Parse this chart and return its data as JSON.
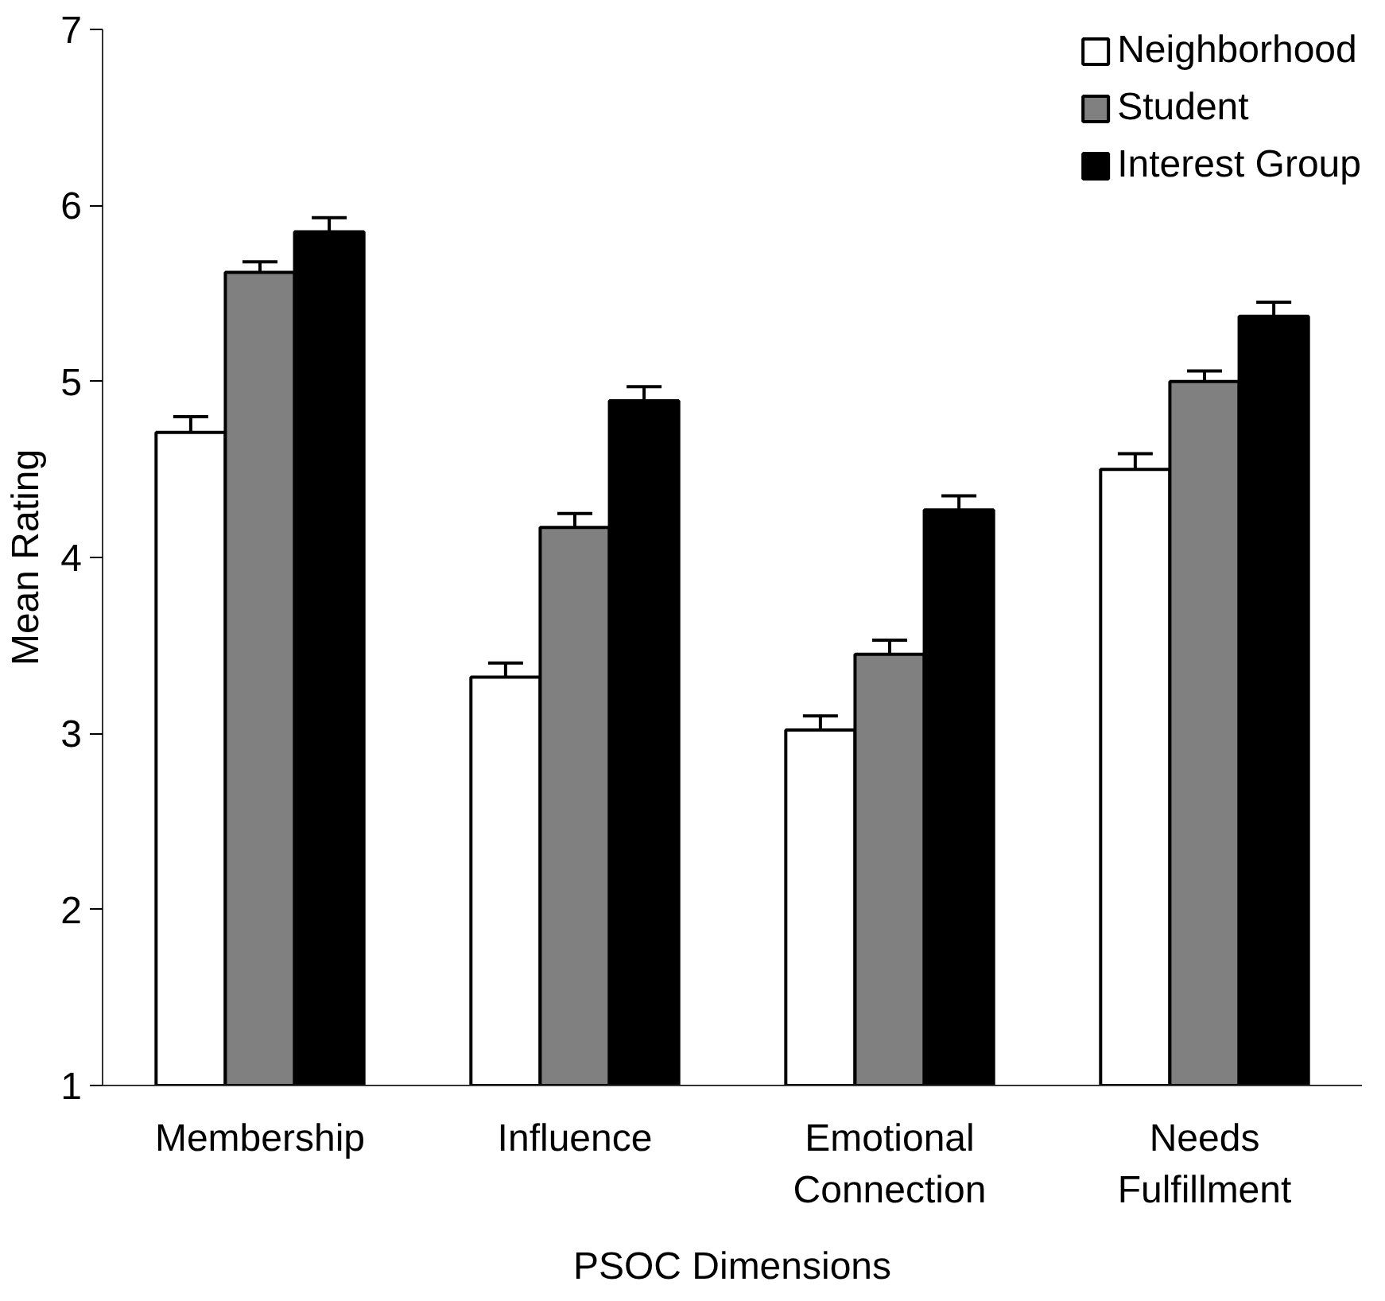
{
  "chart_data": {
    "type": "bar",
    "xlabel": "PSOC Dimensions",
    "ylabel": "Mean Rating",
    "categories": [
      "Membership",
      "Influence",
      "Emotional Connection",
      "Needs Fulfillment"
    ],
    "series": [
      {
        "name": "Neighborhood",
        "color": "#ffffff",
        "values": [
          4.71,
          3.32,
          3.02,
          4.5
        ],
        "errors": [
          0.09,
          0.08,
          0.08,
          0.09
        ]
      },
      {
        "name": "Student",
        "color": "#808080",
        "values": [
          5.62,
          4.17,
          3.45,
          5.0
        ],
        "errors": [
          0.06,
          0.08,
          0.08,
          0.06
        ]
      },
      {
        "name": "Interest Group",
        "color": "#000000",
        "values": [
          5.85,
          4.89,
          4.27,
          5.37
        ],
        "errors": [
          0.08,
          0.08,
          0.08,
          0.08
        ]
      }
    ],
    "ylim": [
      1,
      7
    ],
    "yticks": [
      1,
      2,
      3,
      4,
      5,
      6,
      7
    ],
    "grid": false,
    "legend": "top right"
  }
}
